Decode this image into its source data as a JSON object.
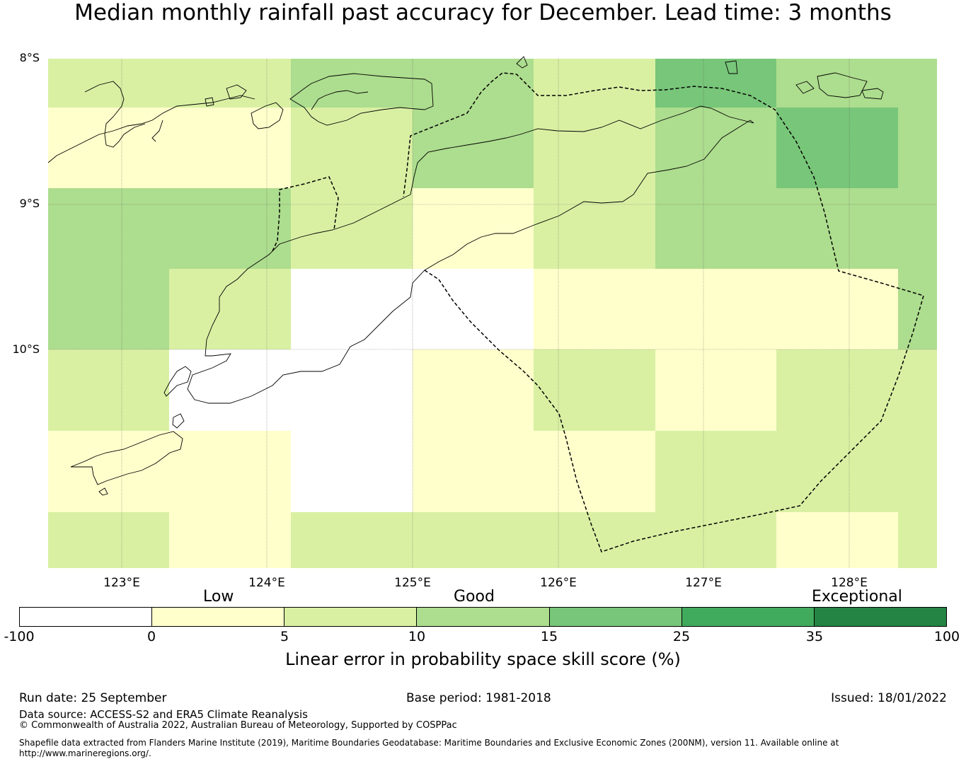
{
  "title": "Median monthly rainfall past accuracy for December. Lead time: 3 months",
  "map": {
    "latitude_labels": [
      "8°S",
      "9°S",
      "10°S"
    ],
    "longitude_labels": [
      "123°E",
      "124°E",
      "125°E",
      "126°E",
      "127°E",
      "128°E"
    ],
    "grid_skill_categories_rows_north_to_south": [
      [
        "light-green",
        "light-green",
        "green",
        "green",
        "light-green",
        "mid-green",
        "green",
        "green"
      ],
      [
        "pale-yellow",
        "pale-yellow",
        "light-green",
        "green",
        "light-green",
        "green",
        "mid-green",
        "green"
      ],
      [
        "green",
        "green",
        "light-green",
        "pale-yellow",
        "light-green",
        "green",
        "green",
        "green"
      ],
      [
        "green",
        "light-green",
        "negative",
        "negative",
        "pale-yellow",
        "pale-yellow",
        "pale-yellow",
        "green"
      ],
      [
        "light-green",
        "negative",
        "negative",
        "pale-yellow",
        "light-green",
        "pale-yellow",
        "light-green",
        "light-green"
      ],
      [
        "pale-yellow",
        "pale-yellow",
        "negative",
        "pale-yellow",
        "pale-yellow",
        "light-green",
        "light-green",
        "light-green"
      ],
      [
        "light-green",
        "pale-yellow",
        "light-green",
        "light-green",
        "light-green",
        "light-green",
        "pale-yellow",
        "light-green"
      ]
    ]
  },
  "colorbar": {
    "category_labels": [
      "Low",
      "Good",
      "Exceptional"
    ],
    "ticks": [
      "-100",
      "0",
      "5",
      "10",
      "15",
      "25",
      "35",
      "100"
    ],
    "colors": [
      "#ffffff",
      "#ffffcc",
      "#d9f0a3",
      "#addd8e",
      "#78c679",
      "#41ab5d",
      "#238443"
    ],
    "label": "Linear error in probability space skill score (%)"
  },
  "footer": {
    "run_date": "Run date: 25 September",
    "base_period": "Base period: 1981-2018",
    "issued": "Issued: 18/01/2022",
    "data_source": "Data source: ACCESS-S2 and ERA5 Climate Reanalysis",
    "copyright": "© Commonwealth of Australia 2022, Australian Bureau of Meteorology, Supported by COSPPac",
    "shapefile_line1": "Shapefile data extracted from Flanders Marine Institute (2019), Maritime Boundaries Geodatabase: Maritime Boundaries and Exclusive Economic Zones (200NM), version 11. Available online at",
    "shapefile_line2": "http://www.marineregions.org/."
  }
}
